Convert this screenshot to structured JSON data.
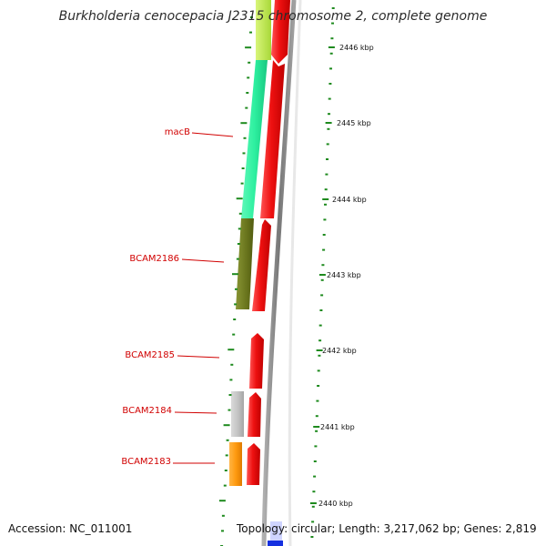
{
  "map": {
    "title": "Burkholderia cenocepacia J2315 chromosome 2, complete genome",
    "accession": "Accession: NC_011001",
    "summary": "Topology: circular; Length: 3,217,062 bp; Genes: 2,819"
  },
  "colors": {
    "gene_label": "#d10000",
    "cds_forward": "#ee1111",
    "backbone": "#8a8a8a",
    "tick": "#1e8a1e",
    "macB": "#2ef0a0",
    "BCAM2186": "#6e7a20",
    "BCAM2184": "#c4c4c4",
    "BCAM2183": "#ff9a10",
    "top_segment": "#b8e84a",
    "bottom_segment": "#1530e0"
  },
  "gene_labels": [
    "macB",
    "BCAM2186",
    "BCAM2185",
    "BCAM2184",
    "BCAM2183"
  ],
  "kbp_ticks": [
    "2446 kbp",
    "2445 kbp",
    "2444 kbp",
    "2443 kbp",
    "2442 kbp",
    "2441 kbp",
    "2440 kbp"
  ]
}
